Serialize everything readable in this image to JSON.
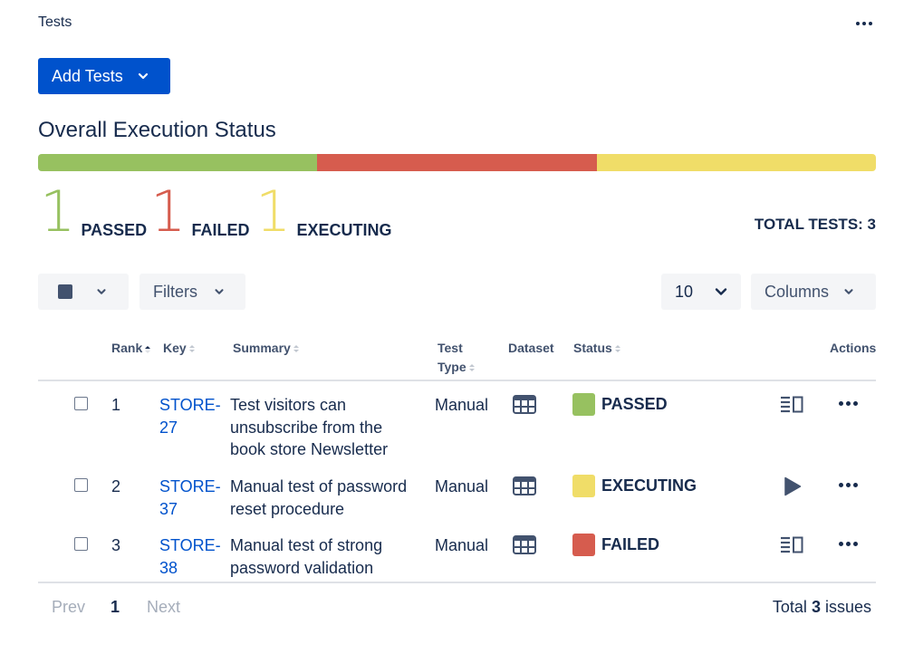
{
  "header": {
    "title": "Tests",
    "more_label": "More actions"
  },
  "add_button": {
    "label": "Add Tests"
  },
  "section_title": "Overall Execution Status",
  "colors": {
    "passed": "#97c160",
    "failed": "#d65c4e",
    "executing": "#f0dd68",
    "primary": "#0052cc"
  },
  "progress": [
    {
      "status": "passed",
      "fraction": 0.3333
    },
    {
      "status": "failed",
      "fraction": 0.3333
    },
    {
      "status": "executing",
      "fraction": 0.3334
    }
  ],
  "stats": {
    "passed": {
      "count": "1",
      "label": "PASSED"
    },
    "failed": {
      "count": "1",
      "label": "FAILED"
    },
    "executing": {
      "count": "1",
      "label": "EXECUTING"
    },
    "total": "TOTAL TESTS: 3"
  },
  "toolbar": {
    "filters_label": "Filters",
    "page_size": "10",
    "columns_label": "Columns"
  },
  "table": {
    "headers": {
      "rank": "Rank",
      "key": "Key",
      "summary": "Summary",
      "test_type_1": "Test",
      "test_type_2": "Type",
      "dataset": "Dataset",
      "status": "Status",
      "actions": "Actions"
    },
    "rows": [
      {
        "rank": "1",
        "key_1": "STORE-",
        "key_2": "27",
        "summary_1": "Test visitors can",
        "summary_2": "unsubscribe from the",
        "summary_3": "book store Newsletter",
        "type": "Manual",
        "status": "PASSED",
        "action_icon": "details-icon"
      },
      {
        "rank": "2",
        "key_1": "STORE-",
        "key_2": "37",
        "summary_1": "Manual test of password",
        "summary_2": "reset procedure",
        "type": "Manual",
        "status": "EXECUTING",
        "action_icon": "play-icon"
      },
      {
        "rank": "3",
        "key_1": "STORE-",
        "key_2": "38",
        "summary_1": "Manual test of strong",
        "summary_2": "password validation",
        "type": "Manual",
        "status": "FAILED",
        "action_icon": "details-icon"
      }
    ]
  },
  "pagination": {
    "prev": "Prev",
    "current": "1",
    "next": "Next",
    "total_prefix": "Total",
    "total_count": "3",
    "total_suffix": "issues"
  }
}
